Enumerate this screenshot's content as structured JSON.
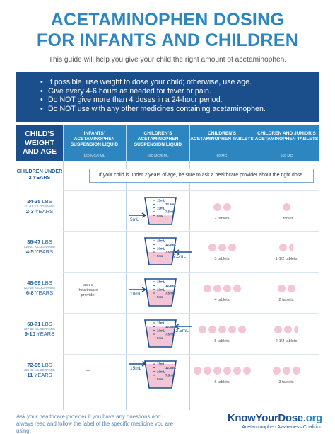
{
  "title_line1": "ACETAMINOPHEN DOSING",
  "title_line2": "FOR INFANTS AND CHILDREN",
  "subtitle": "This guide will help you give your child the right amount of acetaminophen.",
  "bullets": [
    "If possible, use weight to dose your child; otherwise, use age.",
    "Give every 4-6 hours as needed for fever or pain.",
    "Do NOT give more than 4 doses in a 24-hour period.",
    "Do NOT use with any other medicines containing acetaminophen."
  ],
  "columns": [
    {
      "title": "CHILD'S WEIGHT AND AGE",
      "sub": ""
    },
    {
      "title": "INFANTS' ACETAMINOPHEN SUSPENSION LIQUID",
      "sub": "160 MG/5 ML"
    },
    {
      "title": "CHILDREN'S ACETAMINOPHEN SUSPENSION LIQUID",
      "sub": "160 MG/5 ML"
    },
    {
      "title": "CHILDREN'S ACETAMINOPHEN TABLETS",
      "sub": "80 MG"
    },
    {
      "title": "CHILDREN AND JUNIOR'S ACETAMINOPHEN TABLETS",
      "sub": "160 MG"
    }
  ],
  "under2": {
    "label": "CHILDREN UNDER 2 YEARS",
    "note": "If your child is under 2 years of age, be sure to ask a healthcare provider about the right dose."
  },
  "ask_provider": "ask a healthcare provider",
  "cup_marks": [
    "15mL",
    "12.5mL",
    "10mL",
    "7.5mL",
    "5mL"
  ],
  "rows": [
    {
      "lbs": "24-35",
      "lbs_unit": "LBS",
      "kg": "(11-15 KILOGRAMS)",
      "years": "2-3",
      "years_unit": "YEARS",
      "dose": "5mL",
      "fill": 5,
      "tabs80": "2 tablets",
      "tabs80_n": 2,
      "tabs160": "1 tablet",
      "tabs160_n": 1
    },
    {
      "lbs": "36-47",
      "lbs_unit": "LBS",
      "kg": "(16-21 KILOGRAMS)",
      "years": "4-5",
      "years_unit": "YEARS",
      "dose": "7.5mL",
      "fill": 7.5,
      "tabs80": "3 tablets",
      "tabs80_n": 3,
      "tabs160": "1-1/2 tablets",
      "tabs160_n": 1.5
    },
    {
      "lbs": "48-59",
      "lbs_unit": "LBS",
      "kg": "(22-26 KILOGRAMS)",
      "years": "6-8",
      "years_unit": "YEARS",
      "dose": "10mL",
      "fill": 10,
      "tabs80": "4 tablets",
      "tabs80_n": 4,
      "tabs160": "2 tablets",
      "tabs160_n": 2
    },
    {
      "lbs": "60-71",
      "lbs_unit": "LBS",
      "kg": "(27-32 KILOGRAMS)",
      "years": "9-10",
      "years_unit": "YEARS",
      "dose": "12.5mL",
      "fill": 12.5,
      "tabs80": "5 tablets",
      "tabs80_n": 5,
      "tabs160": "2-1/2 tablets",
      "tabs160_n": 2.5
    },
    {
      "lbs": "72-95",
      "lbs_unit": "LBS",
      "kg": "(33-43 KILOGRAMS)",
      "years": "11",
      "years_unit": "YEARS",
      "dose": "15mL",
      "fill": 15,
      "tabs80": "6 tablets",
      "tabs80_n": 6,
      "tabs160": "3 tablets",
      "tabs160_n": 3
    }
  ],
  "footer_text": "Ask your healthcare provider if you have any questions and always read and follow the label of the specific medicine you are using.",
  "logo": {
    "part1": "KnowYourDose",
    "part2": ".org",
    "sub": "Acetaminophen Awareness Coalition"
  },
  "colors": {
    "brand_blue": "#2e86c1",
    "navy": "#1b4f8c",
    "liquid_pink": "#f4c6d5",
    "tablet_pink": "#f4c6d5"
  }
}
